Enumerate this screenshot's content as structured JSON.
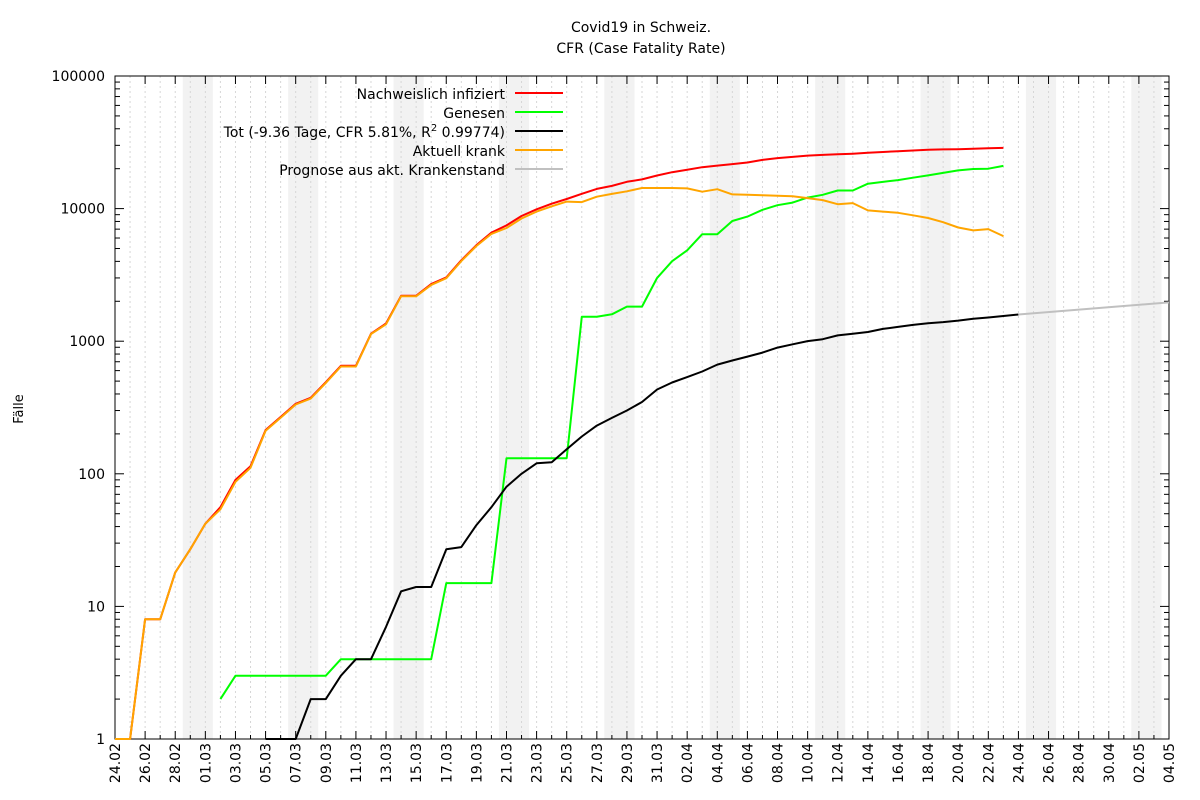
{
  "chart_data": {
    "type": "line",
    "title": "Covid19 in Schweiz.",
    "subtitle": "CFR (Case Fatality Rate)",
    "xlabel": "",
    "ylabel": "Fälle",
    "y_scale": "log",
    "ylim": [
      1,
      100000
    ],
    "y_ticks": [
      "1",
      "10",
      "100",
      "1000",
      "10000",
      "100000"
    ],
    "xlim": [
      "2020-02-24",
      "2020-05-04"
    ],
    "x_tick_labels": [
      "24.02",
      "26.02",
      "28.02",
      "01.03",
      "03.03",
      "05.03",
      "07.03",
      "09.03",
      "11.03",
      "13.03",
      "15.03",
      "17.03",
      "19.03",
      "21.03",
      "23.03",
      "25.03",
      "27.03",
      "29.03",
      "31.03",
      "02.04",
      "04.04",
      "06.04",
      "08.04",
      "10.04",
      "12.04",
      "14.04",
      "16.04",
      "18.04",
      "20.04",
      "22.04",
      "24.04",
      "26.04",
      "28.04",
      "30.04",
      "02.05",
      "04.05"
    ],
    "weekend_shading": [
      [
        "2020-02-29",
        "2020-03-01"
      ],
      [
        "2020-03-07",
        "2020-03-08"
      ],
      [
        "2020-03-14",
        "2020-03-15"
      ],
      [
        "2020-03-21",
        "2020-03-22"
      ],
      [
        "2020-03-28",
        "2020-03-29"
      ],
      [
        "2020-04-04",
        "2020-04-05"
      ],
      [
        "2020-04-11",
        "2020-04-12"
      ],
      [
        "2020-04-18",
        "2020-04-19"
      ],
      [
        "2020-04-25",
        "2020-04-26"
      ],
      [
        "2020-05-02",
        "2020-05-03"
      ]
    ],
    "grid": "vertical-dashed",
    "legend_position": "top",
    "legend": {
      "infected": "Nachweislich infiziert",
      "recovered": "Genesen",
      "dead_prefix": "Tot (-9.36 Tage, CFR 5.81%, R",
      "dead_sup": "2",
      "dead_suffix": " 0.99774)",
      "sick": "Aktuell krank",
      "forecast": "Prognose aus akt. Krankenstand"
    },
    "series": [
      {
        "key": "infected",
        "color": "#ff0000",
        "points": [
          [
            "2020-02-24",
            1
          ],
          [
            "2020-02-25",
            1
          ],
          [
            "2020-02-26",
            8
          ],
          [
            "2020-02-27",
            8
          ],
          [
            "2020-02-28",
            18
          ],
          [
            "2020-02-29",
            27
          ],
          [
            "2020-03-01",
            42
          ],
          [
            "2020-03-02",
            56
          ],
          [
            "2020-03-03",
            90
          ],
          [
            "2020-03-04",
            114
          ],
          [
            "2020-03-05",
            214
          ],
          [
            "2020-03-06",
            268
          ],
          [
            "2020-03-07",
            337
          ],
          [
            "2020-03-08",
            374
          ],
          [
            "2020-03-09",
            491
          ],
          [
            "2020-03-10",
            652
          ],
          [
            "2020-03-11",
            652
          ],
          [
            "2020-03-12",
            1139
          ],
          [
            "2020-03-13",
            1359
          ],
          [
            "2020-03-14",
            2200
          ],
          [
            "2020-03-15",
            2200
          ],
          [
            "2020-03-16",
            2700
          ],
          [
            "2020-03-17",
            3028
          ],
          [
            "2020-03-18",
            4075
          ],
          [
            "2020-03-19",
            5294
          ],
          [
            "2020-03-20",
            6575
          ],
          [
            "2020-03-21",
            7474
          ],
          [
            "2020-03-22",
            8795
          ],
          [
            "2020-03-23",
            9877
          ],
          [
            "2020-03-24",
            10897
          ],
          [
            "2020-03-25",
            11811
          ],
          [
            "2020-03-26",
            12928
          ],
          [
            "2020-03-27",
            14076
          ],
          [
            "2020-03-28",
            14829
          ],
          [
            "2020-03-29",
            15922
          ],
          [
            "2020-03-30",
            16605
          ],
          [
            "2020-03-31",
            17768
          ],
          [
            "2020-04-01",
            18827
          ],
          [
            "2020-04-02",
            19606
          ],
          [
            "2020-04-03",
            20505
          ],
          [
            "2020-04-04",
            21100
          ],
          [
            "2020-04-05",
            21657
          ],
          [
            "2020-04-06",
            22253
          ],
          [
            "2020-04-07",
            23280
          ],
          [
            "2020-04-08",
            24051
          ],
          [
            "2020-04-09",
            24551
          ],
          [
            "2020-04-10",
            25107
          ],
          [
            "2020-04-11",
            25415
          ],
          [
            "2020-04-12",
            25688
          ],
          [
            "2020-04-13",
            25936
          ],
          [
            "2020-04-14",
            26336
          ],
          [
            "2020-04-15",
            26732
          ],
          [
            "2020-04-16",
            27078
          ],
          [
            "2020-04-17",
            27404
          ],
          [
            "2020-04-18",
            27740
          ],
          [
            "2020-04-19",
            27944
          ],
          [
            "2020-04-20",
            28063
          ],
          [
            "2020-04-21",
            28268
          ],
          [
            "2020-04-22",
            28496
          ],
          [
            "2020-04-23",
            28677
          ]
        ]
      },
      {
        "key": "recovered",
        "color": "#00ff00",
        "points": [
          [
            "2020-03-02",
            2
          ],
          [
            "2020-03-03",
            3
          ],
          [
            "2020-03-04",
            3
          ],
          [
            "2020-03-05",
            3
          ],
          [
            "2020-03-06",
            3
          ],
          [
            "2020-03-07",
            3
          ],
          [
            "2020-03-08",
            3
          ],
          [
            "2020-03-09",
            3
          ],
          [
            "2020-03-10",
            4
          ],
          [
            "2020-03-11",
            4
          ],
          [
            "2020-03-12",
            4
          ],
          [
            "2020-03-13",
            4
          ],
          [
            "2020-03-14",
            4
          ],
          [
            "2020-03-15",
            4
          ],
          [
            "2020-03-16",
            4
          ],
          [
            "2020-03-17",
            15
          ],
          [
            "2020-03-18",
            15
          ],
          [
            "2020-03-19",
            15
          ],
          [
            "2020-03-20",
            15
          ],
          [
            "2020-03-21",
            131
          ],
          [
            "2020-03-22",
            131
          ],
          [
            "2020-03-23",
            131
          ],
          [
            "2020-03-24",
            131
          ],
          [
            "2020-03-25",
            131
          ],
          [
            "2020-03-26",
            1530
          ],
          [
            "2020-03-27",
            1530
          ],
          [
            "2020-03-28",
            1595
          ],
          [
            "2020-03-29",
            1823
          ],
          [
            "2020-03-30",
            1823
          ],
          [
            "2020-03-31",
            3000
          ],
          [
            "2020-04-01",
            4013
          ],
          [
            "2020-04-02",
            4846
          ],
          [
            "2020-04-03",
            6415
          ],
          [
            "2020-04-04",
            6415
          ],
          [
            "2020-04-05",
            8056
          ],
          [
            "2020-04-06",
            8704
          ],
          [
            "2020-04-07",
            9800
          ],
          [
            "2020-04-08",
            10600
          ],
          [
            "2020-04-09",
            11100
          ],
          [
            "2020-04-10",
            12100
          ],
          [
            "2020-04-11",
            12700
          ],
          [
            "2020-04-12",
            13700
          ],
          [
            "2020-04-13",
            13700
          ],
          [
            "2020-04-14",
            15400
          ],
          [
            "2020-04-15",
            15900
          ],
          [
            "2020-04-16",
            16400
          ],
          [
            "2020-04-17",
            17100
          ],
          [
            "2020-04-18",
            17800
          ],
          [
            "2020-04-19",
            18600
          ],
          [
            "2020-04-20",
            19400
          ],
          [
            "2020-04-21",
            19900
          ],
          [
            "2020-04-22",
            20000
          ],
          [
            "2020-04-23",
            21000
          ]
        ]
      },
      {
        "key": "dead",
        "color": "#000000",
        "points": [
          [
            "2020-03-05",
            1
          ],
          [
            "2020-03-06",
            1
          ],
          [
            "2020-03-07",
            1
          ],
          [
            "2020-03-08",
            2
          ],
          [
            "2020-03-09",
            2
          ],
          [
            "2020-03-10",
            3
          ],
          [
            "2020-03-11",
            4
          ],
          [
            "2020-03-12",
            4
          ],
          [
            "2020-03-13",
            7
          ],
          [
            "2020-03-14",
            13
          ],
          [
            "2020-03-15",
            14
          ],
          [
            "2020-03-16",
            14
          ],
          [
            "2020-03-17",
            27
          ],
          [
            "2020-03-18",
            28
          ],
          [
            "2020-03-19",
            41
          ],
          [
            "2020-03-20",
            56
          ],
          [
            "2020-03-21",
            80
          ],
          [
            "2020-03-22",
            100
          ],
          [
            "2020-03-23",
            120
          ],
          [
            "2020-03-24",
            122
          ],
          [
            "2020-03-25",
            153
          ],
          [
            "2020-03-26",
            191
          ],
          [
            "2020-03-27",
            231
          ],
          [
            "2020-03-28",
            264
          ],
          [
            "2020-03-29",
            300
          ],
          [
            "2020-03-30",
            348
          ],
          [
            "2020-03-31",
            432
          ],
          [
            "2020-04-01",
            488
          ],
          [
            "2020-04-02",
            536
          ],
          [
            "2020-04-03",
            591
          ],
          [
            "2020-04-04",
            666
          ],
          [
            "2020-04-05",
            715
          ],
          [
            "2020-04-06",
            765
          ],
          [
            "2020-04-07",
            821
          ],
          [
            "2020-04-08",
            895
          ],
          [
            "2020-04-09",
            948
          ],
          [
            "2020-04-10",
            1002
          ],
          [
            "2020-04-11",
            1036
          ],
          [
            "2020-04-12",
            1106
          ],
          [
            "2020-04-13",
            1138
          ],
          [
            "2020-04-14",
            1174
          ],
          [
            "2020-04-15",
            1239
          ],
          [
            "2020-04-16",
            1281
          ],
          [
            "2020-04-17",
            1327
          ],
          [
            "2020-04-18",
            1368
          ],
          [
            "2020-04-19",
            1393
          ],
          [
            "2020-04-20",
            1429
          ],
          [
            "2020-04-21",
            1478
          ],
          [
            "2020-04-22",
            1509
          ],
          [
            "2020-04-23",
            1549
          ],
          [
            "2020-04-24",
            1590
          ]
        ]
      },
      {
        "key": "sick",
        "color": "#ffa500",
        "points": [
          [
            "2020-02-24",
            1
          ],
          [
            "2020-02-25",
            1
          ],
          [
            "2020-02-26",
            8
          ],
          [
            "2020-02-27",
            8
          ],
          [
            "2020-02-28",
            18
          ],
          [
            "2020-02-29",
            27
          ],
          [
            "2020-03-01",
            42
          ],
          [
            "2020-03-02",
            54
          ],
          [
            "2020-03-03",
            87
          ],
          [
            "2020-03-04",
            111
          ],
          [
            "2020-03-05",
            211
          ],
          [
            "2020-03-06",
            265
          ],
          [
            "2020-03-07",
            333
          ],
          [
            "2020-03-08",
            369
          ],
          [
            "2020-03-09",
            485
          ],
          [
            "2020-03-10",
            644
          ],
          [
            "2020-03-11",
            644
          ],
          [
            "2020-03-12",
            1131
          ],
          [
            "2020-03-13",
            1342
          ],
          [
            "2020-03-14",
            2182
          ],
          [
            "2020-03-15",
            2182
          ],
          [
            "2020-03-16",
            2659
          ],
          [
            "2020-03-17",
            2986
          ],
          [
            "2020-03-18",
            4019
          ],
          [
            "2020-03-19",
            5223
          ],
          [
            "2020-03-20",
            6450
          ],
          [
            "2020-03-21",
            7137
          ],
          [
            "2020-03-22",
            8424
          ],
          [
            "2020-03-23",
            9499
          ],
          [
            "2020-03-24",
            10413
          ],
          [
            "2020-03-25",
            11300
          ],
          [
            "2020-03-26",
            11200
          ],
          [
            "2020-03-27",
            12300
          ],
          [
            "2020-03-28",
            12900
          ],
          [
            "2020-03-29",
            13500
          ],
          [
            "2020-03-30",
            14300
          ],
          [
            "2020-03-31",
            14300
          ],
          [
            "2020-04-01",
            14300
          ],
          [
            "2020-04-02",
            14200
          ],
          [
            "2020-04-03",
            13400
          ],
          [
            "2020-04-04",
            14000
          ],
          [
            "2020-04-05",
            12800
          ],
          [
            "2020-04-06",
            12700
          ],
          [
            "2020-04-07",
            12600
          ],
          [
            "2020-04-08",
            12500
          ],
          [
            "2020-04-09",
            12400
          ],
          [
            "2020-04-10",
            12000
          ],
          [
            "2020-04-11",
            11600
          ],
          [
            "2020-04-12",
            10800
          ],
          [
            "2020-04-13",
            11000
          ],
          [
            "2020-04-14",
            9700
          ],
          [
            "2020-04-15",
            9500
          ],
          [
            "2020-04-16",
            9300
          ],
          [
            "2020-04-17",
            8900
          ],
          [
            "2020-04-18",
            8500
          ],
          [
            "2020-04-19",
            7900
          ],
          [
            "2020-04-20",
            7200
          ],
          [
            "2020-04-21",
            6850
          ],
          [
            "2020-04-22",
            7000
          ],
          [
            "2020-04-23",
            6200
          ]
        ]
      },
      {
        "key": "forecast",
        "color": "#c0c0c0",
        "points": [
          [
            "2020-04-24",
            1590
          ],
          [
            "2020-05-04",
            1960
          ]
        ]
      }
    ]
  }
}
